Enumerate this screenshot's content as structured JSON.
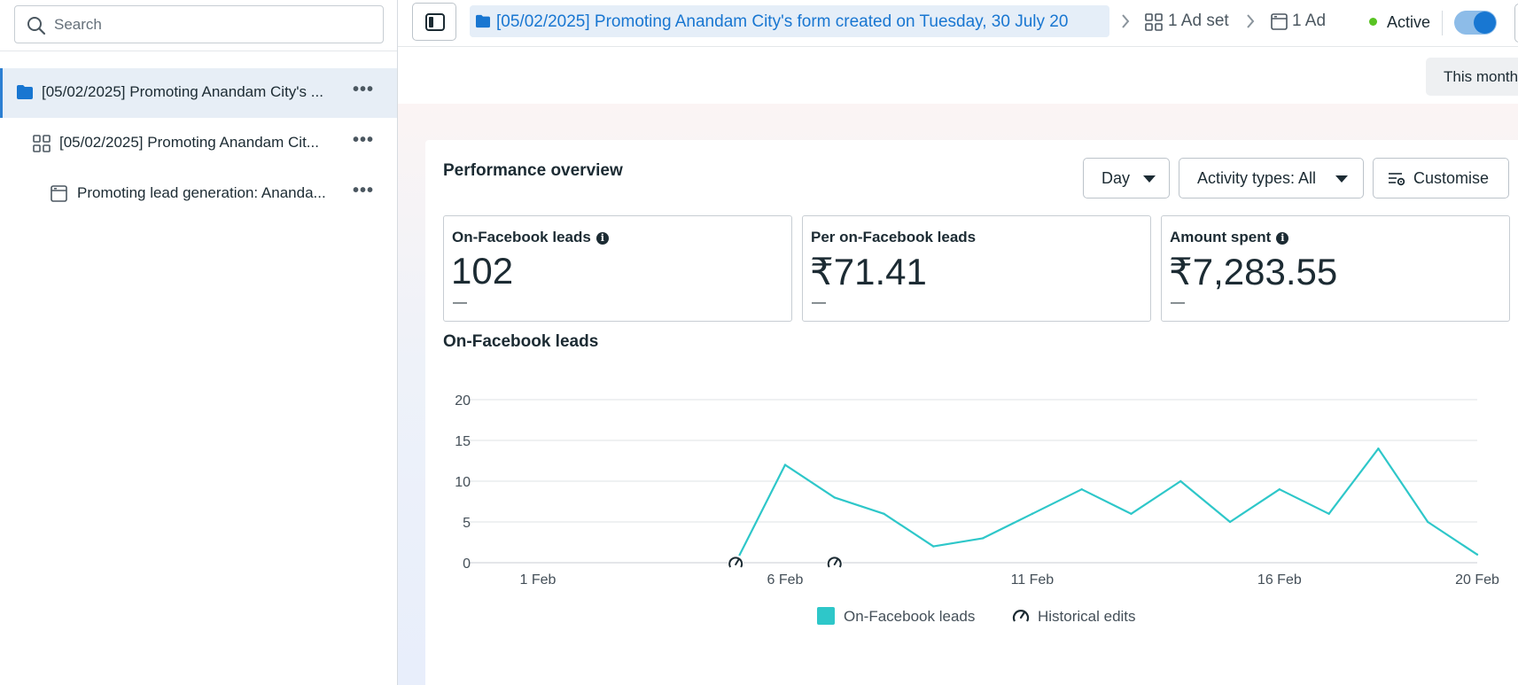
{
  "sidebar": {
    "search_placeholder": "Search",
    "items": [
      {
        "label": "[05/02/2025] Promoting Anandam City's ...",
        "type": "campaign",
        "icon": "folder-icon",
        "selected": true
      },
      {
        "label": "[05/02/2025] Promoting Anandam Cit...",
        "type": "ad-set",
        "icon": "grid-icon",
        "selected": false
      },
      {
        "label": "Promoting lead generation: Ananda...",
        "type": "ad",
        "icon": "ad-icon",
        "selected": false
      }
    ],
    "more_label": "•••"
  },
  "topbar": {
    "campaign_crumb": "[05/02/2025] Promoting Anandam City's form created on Tuesday, 30 July 20",
    "adset_crumb": "1 Ad set",
    "ad_crumb": "1 Ad",
    "status": "Active",
    "toggle_on": true
  },
  "date_range": "This month",
  "overview": {
    "title": "Performance overview",
    "granularity": "Day",
    "activity_types": "Activity types: All",
    "customise": "Customise",
    "kpis": [
      {
        "label": "On-Facebook leads",
        "value": "102",
        "change": "—",
        "has_info": true
      },
      {
        "label": "Per on-Facebook leads",
        "value": "₹71.41",
        "change": "—",
        "has_info": false
      },
      {
        "label": "Amount spent",
        "value": "₹7,283.55",
        "change": "—",
        "has_info": true
      }
    ],
    "chart_title": "On-Facebook leads"
  },
  "colors": {
    "accent": "#1876d1",
    "line": "#2ec7c9",
    "status": "#58c322"
  },
  "chart_data": {
    "type": "line",
    "title": "On-Facebook leads",
    "x_ticks": [
      "1 Feb",
      "6 Feb",
      "11 Feb",
      "16 Feb",
      "20 Feb"
    ],
    "y_ticks": [
      0,
      5,
      10,
      15,
      20
    ],
    "ylim": [
      0,
      20
    ],
    "xlim": [
      1,
      20
    ],
    "series": [
      {
        "name": "On-Facebook leads",
        "color": "#2ec7c9",
        "x": [
          5,
          6,
          7,
          8,
          9,
          10,
          11,
          12,
          13,
          14,
          15,
          16,
          17,
          18,
          19,
          20
        ],
        "y": [
          0,
          12,
          8,
          6,
          2,
          3,
          6,
          9,
          6,
          10,
          5,
          9,
          6,
          14,
          5,
          1
        ]
      }
    ],
    "historical_edits_x": [
      5,
      7
    ],
    "legend": [
      "On-Facebook leads",
      "Historical edits"
    ],
    "grid": true,
    "legend_position": "bottom"
  }
}
